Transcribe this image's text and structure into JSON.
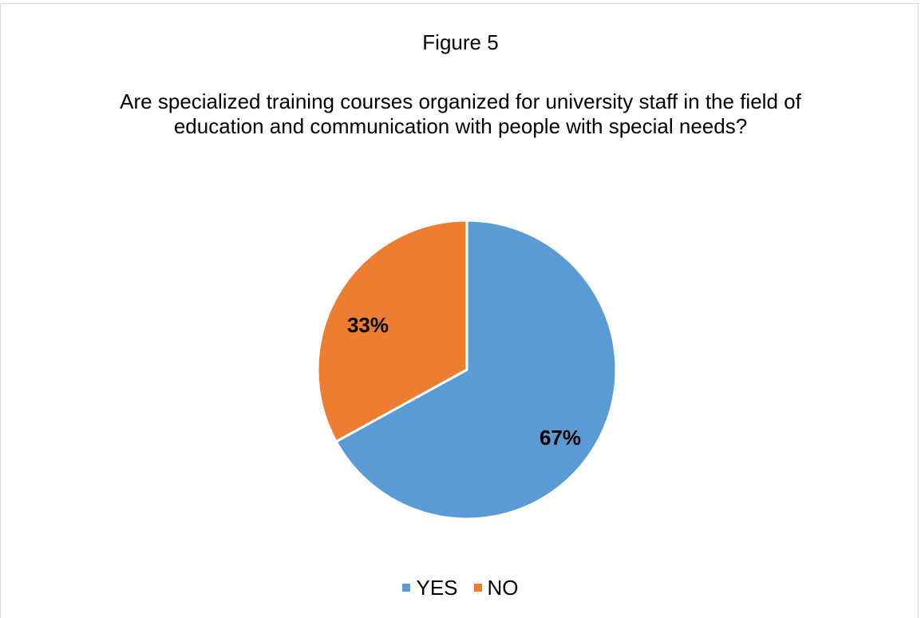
{
  "chart_data": {
    "type": "pie",
    "figure_label": "Figure 5",
    "title": "Are specialized training courses organized for university staff in the field of education and communication with people with special needs?",
    "slices": [
      {
        "name": "YES",
        "value": 67,
        "label": "67%",
        "color": "#5b9bd5"
      },
      {
        "name": "NO",
        "value": 33,
        "label": "33%",
        "color": "#ed7d31"
      }
    ],
    "legend_position": "bottom"
  }
}
